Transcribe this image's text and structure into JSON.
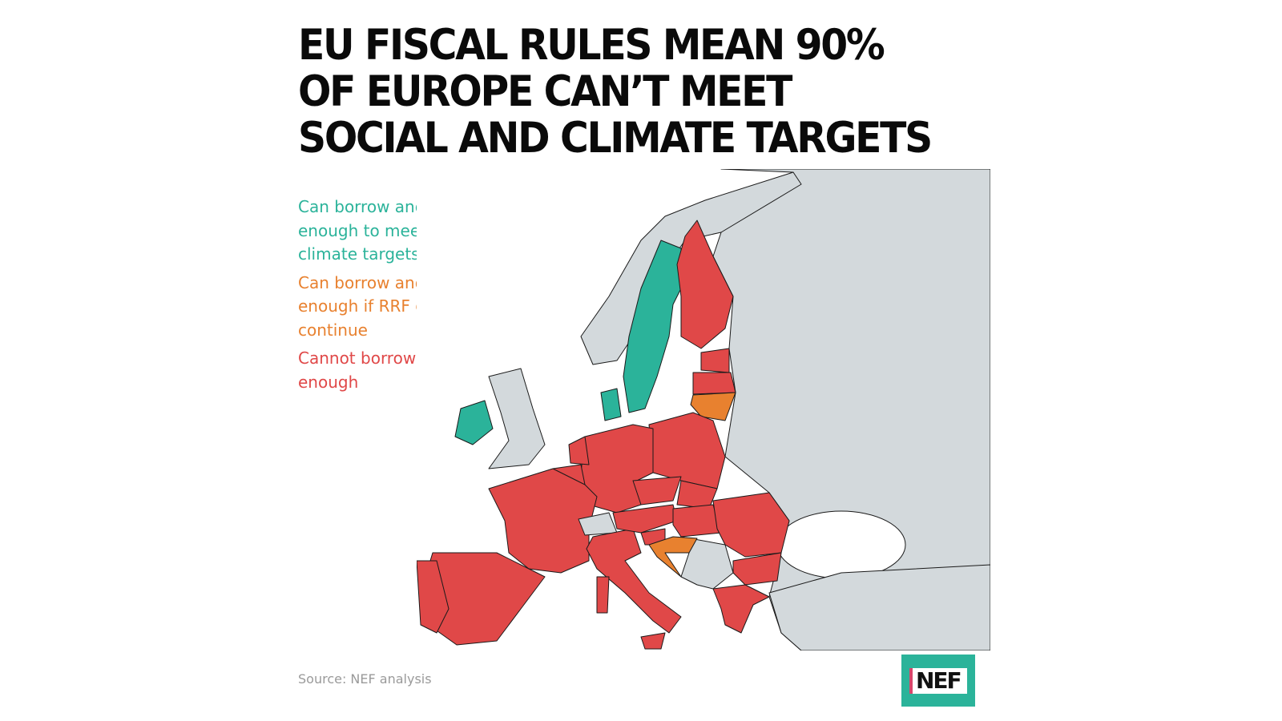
{
  "title": "EU FISCAL RULES MEAN 90% OF EUROPE CAN’T MEET SOCIAL AND CLIMATE TARGETS",
  "legend": [
    {
      "label": "Can borrow and spend enough to meet social and climate targets",
      "color": "#2bb39a",
      "category": "green"
    },
    {
      "label": "Can borrow and spend enough if RRF grants continue",
      "color": "#e8812f",
      "category": "orange"
    },
    {
      "label": "Cannot borrow and spend enough",
      "color": "#e04848",
      "category": "red"
    }
  ],
  "colors": {
    "non_eu_land": "#d3d9dc",
    "sea": "#ffffff",
    "border": "#1a1a1a"
  },
  "map_regions": {
    "green": [
      "sweden",
      "denmark",
      "ireland"
    ],
    "orange": [
      "lithuania",
      "croatia"
    ],
    "red": [
      "finland",
      "estonia",
      "latvia",
      "poland",
      "germany",
      "netherlands",
      "belgium",
      "france",
      "spain",
      "portugal",
      "italy",
      "czechia",
      "austria",
      "slovakia",
      "hungary",
      "slovenia",
      "romania",
      "bulgaria",
      "greece",
      "cyprus"
    ],
    "non_eu": [
      "russia-east",
      "norway",
      "united-kingdom",
      "switzerland",
      "western-balkans",
      "turkey"
    ]
  },
  "source": "Source: NEF analysis",
  "logo": {
    "text": "NEF",
    "bg": "#2bb39a",
    "accent": "#d9466b"
  }
}
